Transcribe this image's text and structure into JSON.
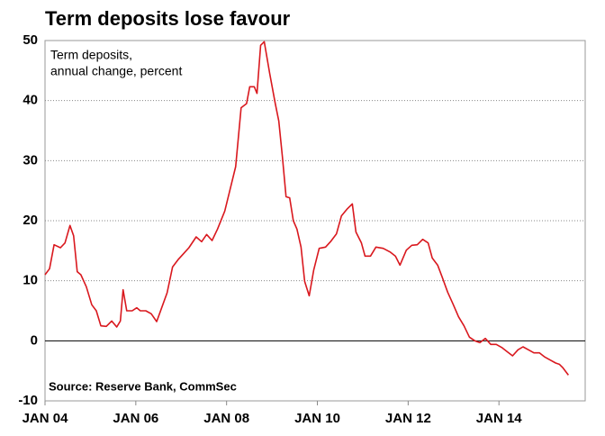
{
  "chart_data": {
    "type": "line",
    "title": "Term deposits lose favour",
    "annotations": [
      "Term deposits,",
      "annual change, percent"
    ],
    "source": "Source: Reserve Bank, CommSec",
    "color": "#d9181e",
    "grid": true,
    "x": [
      2004.0,
      2004.1,
      2004.2,
      2004.34,
      2004.44,
      2004.55,
      2004.63,
      2004.71,
      2004.79,
      2004.91,
      2005.03,
      2005.13,
      2005.23,
      2005.35,
      2005.47,
      2005.58,
      2005.66,
      2005.72,
      2005.8,
      2005.92,
      2006.02,
      2006.1,
      2006.22,
      2006.34,
      2006.46,
      2006.57,
      2006.69,
      2006.81,
      2006.93,
      2007.05,
      2007.17,
      2007.33,
      2007.45,
      2007.56,
      2007.68,
      2007.8,
      2007.96,
      2008.08,
      2008.2,
      2008.32,
      2008.44,
      2008.51,
      2008.61,
      2008.67,
      2008.75,
      2008.83,
      2008.95,
      2009.07,
      2009.15,
      2009.23,
      2009.31,
      2009.39,
      2009.47,
      2009.55,
      2009.64,
      2009.72,
      2009.82,
      2009.92,
      2010.04,
      2010.18,
      2010.3,
      2010.42,
      2010.53,
      2010.65,
      2010.77,
      2010.85,
      2010.97,
      2011.05,
      2011.17,
      2011.29,
      2011.45,
      2011.6,
      2011.72,
      2011.82,
      2011.96,
      2012.08,
      2012.2,
      2012.32,
      2012.44,
      2012.53,
      2012.65,
      2012.75,
      2012.87,
      2012.99,
      2013.11,
      2013.23,
      2013.35,
      2013.47,
      2013.58,
      2013.7,
      2013.82,
      2013.94,
      2014.06,
      2014.18,
      2014.3,
      2014.42,
      2014.53,
      2014.65,
      2014.77,
      2014.89,
      2015.01,
      2015.13,
      2015.25,
      2015.33,
      2015.41,
      2015.53
    ],
    "values": [
      11,
      12,
      16,
      15.5,
      16.3,
      19.2,
      17.5,
      11.5,
      11,
      9,
      6,
      5,
      2.5,
      2.4,
      3.3,
      2.3,
      3.3,
      8.5,
      5,
      5,
      5.5,
      5,
      5,
      4.5,
      3.2,
      5.5,
      8,
      12.3,
      13.5,
      14.5,
      15.5,
      17.3,
      16.5,
      17.7,
      16.7,
      18.6,
      21.6,
      25.3,
      29,
      38.8,
      39.5,
      42.3,
      42.3,
      41.2,
      49.2,
      49.8,
      44.5,
      39.6,
      36.6,
      30.6,
      24,
      23.8,
      20,
      18.6,
      15.6,
      9.9,
      7.5,
      11.8,
      15.4,
      15.6,
      16.6,
      17.8,
      20.8,
      21.9,
      22.8,
      18.1,
      16.3,
      14.1,
      14.1,
      15.6,
      15.4,
      14.8,
      14.1,
      12.6,
      15.1,
      15.9,
      16,
      16.9,
      16.3,
      13.8,
      12.6,
      10.6,
      8.1,
      6.1,
      4,
      2.5,
      0.6,
      0,
      -0.3,
      0.4,
      -0.6,
      -0.6,
      -1.1,
      -1.8,
      -2.5,
      -1.5,
      -1,
      -1.5,
      -2,
      -2,
      -2.7,
      -3.2,
      -3.7,
      -3.9,
      -4.5,
      -5.7
    ],
    "xlim": [
      2004,
      2015.9
    ],
    "xticks": [
      {
        "value": 2004,
        "label": "JAN 04"
      },
      {
        "value": 2006,
        "label": "JAN 06"
      },
      {
        "value": 2008,
        "label": "JAN 08"
      },
      {
        "value": 2010,
        "label": "JAN 10"
      },
      {
        "value": 2012,
        "label": "JAN 12"
      },
      {
        "value": 2014,
        "label": "JAN 14"
      }
    ],
    "ylim": [
      -10,
      50
    ],
    "yticks": [
      -10,
      0,
      10,
      20,
      30,
      40,
      50
    ]
  }
}
